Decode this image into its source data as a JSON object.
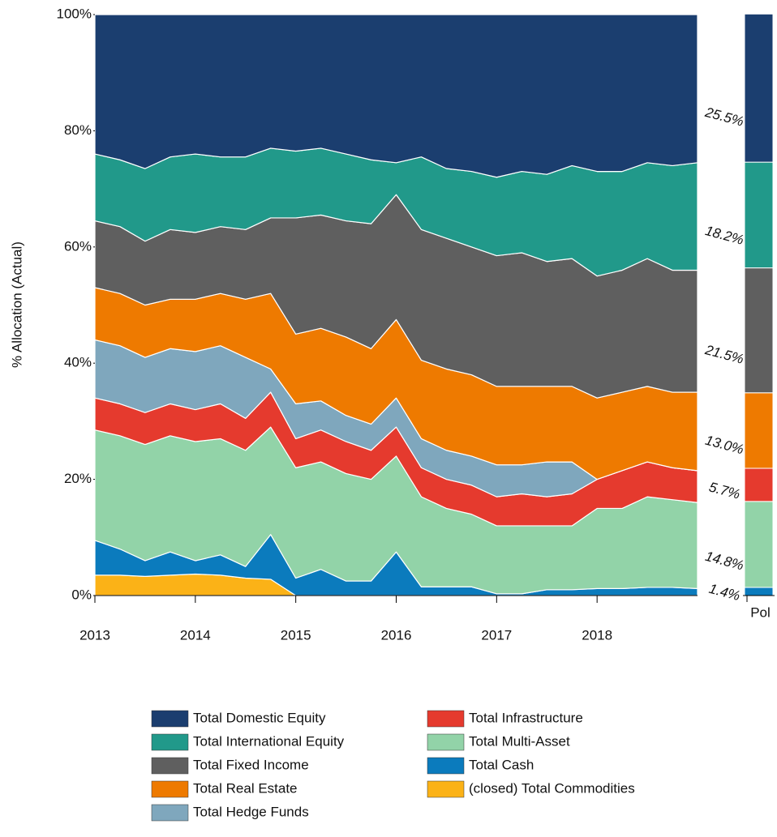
{
  "chart_data": {
    "type": "stacked_area",
    "y_axis_label": "% Allocation (Actual)",
    "x": [
      2013,
      2013.25,
      2013.5,
      2013.75,
      2014,
      2014.25,
      2014.5,
      2014.75,
      2015,
      2015.25,
      2015.5,
      2015.75,
      2016,
      2016.25,
      2016.5,
      2016.75,
      2017,
      2017.25,
      2017.5,
      2017.75,
      2018,
      2018.25,
      2018.5,
      2018.75,
      2019
    ],
    "xlim": [
      2013,
      2019
    ],
    "xticks": [
      2013,
      2014,
      2015,
      2016,
      2017,
      2018
    ],
    "ylim": [
      0,
      100
    ],
    "yticks": [
      {
        "value": 0,
        "label": "0%"
      },
      {
        "value": 20,
        "label": "20%"
      },
      {
        "value": 40,
        "label": "40%"
      },
      {
        "value": 60,
        "label": "60%"
      },
      {
        "value": 80,
        "label": "80%"
      },
      {
        "value": 100,
        "label": "100%"
      }
    ],
    "policy_name": "Pol",
    "series": [
      {
        "name": "Total Domestic Equity",
        "color": "#1b3e6f",
        "policy": 25.5,
        "policy_label": "25.5%",
        "values": [
          24,
          25,
          26.5,
          24.5,
          24,
          24.5,
          24.5,
          23,
          23.5,
          23,
          24,
          25,
          25.5,
          24.5,
          26.5,
          27,
          28,
          27,
          27.5,
          26,
          27,
          27,
          25.5,
          26,
          25.5
        ]
      },
      {
        "name": "Total International Equity",
        "color": "#21998a",
        "policy": 18.2,
        "policy_label": "18.2%",
        "values": [
          11.5,
          11.5,
          12.5,
          12.5,
          13.5,
          12,
          12.5,
          12,
          11.5,
          11.5,
          11.5,
          11,
          5.5,
          12.5,
          12,
          13,
          13.5,
          14,
          15,
          16,
          18,
          17,
          16.5,
          18,
          18.5
        ]
      },
      {
        "name": "Total Fixed Income",
        "color": "#5f5f5f",
        "policy": 21.5,
        "policy_label": "21.5%",
        "values": [
          11.5,
          11.5,
          11,
          12,
          11.5,
          11.5,
          12,
          13,
          20,
          19.5,
          20,
          21.5,
          21.5,
          22.5,
          22.5,
          22,
          22.5,
          23,
          21.5,
          22,
          21,
          21,
          22,
          21,
          21
        ]
      },
      {
        "name": "Total Real Estate",
        "color": "#ee7a00",
        "policy": 13.0,
        "policy_label": "13.0%",
        "values": [
          9,
          9,
          9,
          8.5,
          9,
          9,
          10,
          13,
          12,
          12.5,
          13.5,
          13,
          13.5,
          13.5,
          14,
          14,
          13.5,
          13.5,
          13,
          13,
          14,
          13.5,
          13,
          13,
          13.5
        ]
      },
      {
        "name": "Total Hedge Funds",
        "color": "#7fa7bd",
        "values": [
          10,
          10,
          9.5,
          9.5,
          10,
          10,
          10.5,
          4,
          6,
          5,
          4.5,
          4.5,
          5,
          5,
          5,
          5,
          5.5,
          5,
          6,
          5.5,
          0,
          0,
          0,
          0,
          0
        ]
      },
      {
        "name": "Total Infrastructure",
        "color": "#e53a2e",
        "policy": 5.7,
        "policy_label": "5.7%",
        "values": [
          5.5,
          5.5,
          5.5,
          5.5,
          5.5,
          6,
          5.5,
          6,
          5,
          5.5,
          5.5,
          5,
          5,
          5,
          5,
          5,
          5,
          5.5,
          5,
          5.5,
          5,
          6.5,
          6,
          5.5,
          5.5
        ]
      },
      {
        "name": "Total Multi-Asset",
        "color": "#92d3a8",
        "policy": 14.8,
        "policy_label": "14.8%",
        "values": [
          19,
          19.5,
          20,
          20,
          20.5,
          20,
          20,
          18.5,
          19,
          18.5,
          18.5,
          17.5,
          16.5,
          15.5,
          13.5,
          12.5,
          11.7,
          11.7,
          11,
          11,
          13.8,
          13.8,
          15.6,
          15.1,
          14.8
        ]
      },
      {
        "name": "Total Cash",
        "color": "#0b7bbd",
        "policy": 1.4,
        "policy_label": "1.4%",
        "values": [
          6,
          4.5,
          2.7,
          4,
          2.3,
          3.5,
          2,
          7.7,
          3,
          4.5,
          2.5,
          2.5,
          7.5,
          1.5,
          1.5,
          1.5,
          0.3,
          0.3,
          1,
          1,
          1.2,
          1.2,
          1.4,
          1.4,
          1.2
        ]
      },
      {
        "name": "(closed) Total Commodities",
        "color": "#fbb217",
        "values": [
          3.5,
          3.5,
          3.3,
          3.5,
          3.7,
          3.5,
          3,
          2.8,
          0,
          0,
          0,
          0,
          0,
          0,
          0,
          0,
          0,
          0,
          0,
          0,
          0,
          0,
          0,
          0,
          0
        ]
      }
    ]
  }
}
